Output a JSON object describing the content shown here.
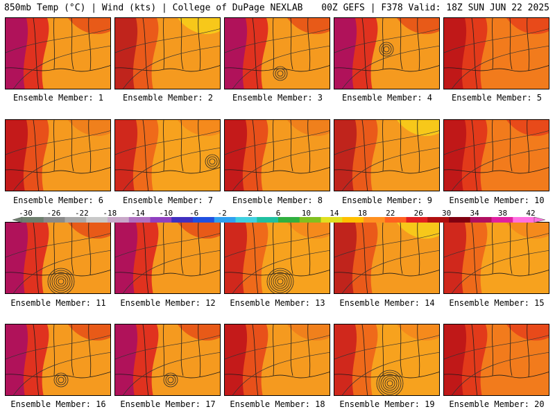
{
  "header": {
    "left": "850mb Temp (°C) | Wind (kts) | College of DuPage NEXLAB",
    "right": "00Z GEFS | F378 Valid: 18Z SUN JUN 22 2025"
  },
  "members": [
    {
      "label": "Ensemble Member: 1",
      "theme": "hot-west",
      "low": null
    },
    {
      "label": "Ensemble Member: 2",
      "theme": "cool-north",
      "low": null
    },
    {
      "label": "Ensemble Member: 3",
      "theme": "hot-west",
      "low": "gulf"
    },
    {
      "label": "Ensemble Member: 4",
      "theme": "hot-west",
      "low": "center"
    },
    {
      "label": "Ensemble Member: 5",
      "theme": "red",
      "low": null
    },
    {
      "label": "Ensemble Member: 6",
      "theme": "red-west",
      "low": null
    },
    {
      "label": "Ensemble Member: 7",
      "theme": "orange",
      "low": "east"
    },
    {
      "label": "Ensemble Member: 8",
      "theme": "red-west",
      "low": null
    },
    {
      "label": "Ensemble Member: 9",
      "theme": "cool-north",
      "low": null
    },
    {
      "label": "Ensemble Member: 10",
      "theme": "red",
      "low": null
    },
    {
      "label": "Ensemble Member: 11",
      "theme": "hot-west",
      "low": "gulf-strong"
    },
    {
      "label": "Ensemble Member: 12",
      "theme": "hot-west",
      "low": null
    },
    {
      "label": "Ensemble Member: 13",
      "theme": "orange",
      "low": "gulf-strong"
    },
    {
      "label": "Ensemble Member: 14",
      "theme": "cool-north",
      "low": null
    },
    {
      "label": "Ensemble Member: 15",
      "theme": "orange",
      "low": null
    },
    {
      "label": "Ensemble Member: 16",
      "theme": "hot-west",
      "low": "gulf"
    },
    {
      "label": "Ensemble Member: 17",
      "theme": "hot-west",
      "low": "gulf"
    },
    {
      "label": "Ensemble Member: 18",
      "theme": "red-west",
      "low": null
    },
    {
      "label": "Ensemble Member: 19",
      "theme": "orange",
      "low": "gulf-strong"
    },
    {
      "label": "Ensemble Member: 20",
      "theme": "red",
      "low": null
    }
  ],
  "colorbar": {
    "labels": [
      "-30",
      "-26",
      "-22",
      "-18",
      "-14",
      "-10",
      "-6",
      "-2",
      "2",
      "6",
      "10",
      "14",
      "18",
      "22",
      "26",
      "30",
      "34",
      "38",
      "42"
    ],
    "colors": [
      "#6e7f6e",
      "#8a8a8a",
      "#a8a8a8",
      "#c8c8c8",
      "#c8a8c8",
      "#b070c0",
      "#9040c0",
      "#4030c0",
      "#2050e0",
      "#30a0f0",
      "#40d0e0",
      "#20c0a0",
      "#30b040",
      "#80c020",
      "#e0e020",
      "#ffc000",
      "#ff9020",
      "#ff6020",
      "#e02020",
      "#b01010",
      "#800010",
      "#b01060",
      "#e020a0",
      "#ff70e0"
    ]
  }
}
